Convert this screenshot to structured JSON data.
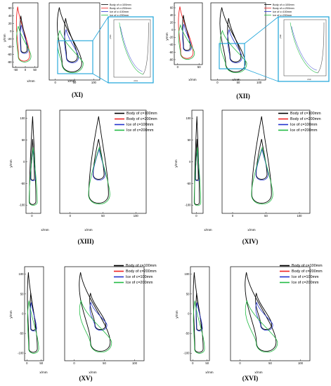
{
  "colors": {
    "body100": "#000000",
    "body200": "#ee2222",
    "ice100": "#2233cc",
    "ice200": "#22bb44",
    "highlight": "#1aa3d9"
  },
  "chart_data": [
    {
      "panel": "XI",
      "type": "line",
      "caption": "(XI)",
      "xlabel": "x/mm",
      "ylabel": "y/mm",
      "legend": [
        "Body of c=100mm",
        "Body of c=200mm",
        "Ice of c=100mm",
        "Ice of c=200mm"
      ],
      "y_ticks": [
        "-80",
        "-60",
        "-40",
        "-20",
        "0",
        "20",
        "40",
        "60"
      ],
      "x_ticks": [
        [
          "-50",
          "0",
          "50"
        ],
        [
          "0",
          "50",
          "100"
        ]
      ],
      "inset": {
        "ylabel": "y/mm",
        "xlabel": "x/mm"
      }
    },
    {
      "panel": "XII",
      "type": "line",
      "caption": "(XII)",
      "xlabel": "x/mm",
      "ylabel": "y/mm",
      "legend": [
        "Body of c=100mm",
        "Body of c=200mm",
        "Ice of c=100mm",
        "Ice of c=200mm"
      ],
      "y_ticks": [
        "-80",
        "-60",
        "-40",
        "-20",
        "0",
        "20",
        "40",
        "60"
      ],
      "x_ticks": [
        [
          "0",
          "50"
        ],
        [
          "0",
          "50",
          "100"
        ]
      ],
      "inset": {
        "ylabel": "y/mm",
        "xlabel": "x/mm"
      }
    },
    {
      "panel": "XIII",
      "type": "line",
      "caption": "(XIII)",
      "xlabel": "x/mm",
      "ylabel": "y/mm",
      "legend": [
        "Body of c=100mm",
        "Body of c=200mm",
        "Ice of c=100mm",
        "Ice of c=200mm"
      ],
      "y_ticks": [
        "-100",
        "-50",
        "0",
        "50",
        "100"
      ],
      "x_ticks": [
        [
          "0"
        ],
        [
          "0",
          "50",
          "100"
        ]
      ]
    },
    {
      "panel": "XIV",
      "type": "line",
      "caption": "(XIV)",
      "xlabel": "x/mm",
      "ylabel": "y/mm",
      "legend": [
        "Body of c=100mm",
        "Body of c=200mm",
        "Ice of c=100mm",
        "Ice of c=200mm"
      ],
      "y_ticks": [
        "-100",
        "-50",
        "0",
        "50",
        "100"
      ],
      "x_ticks": [
        [
          "0"
        ],
        [
          "0",
          "50",
          "100"
        ]
      ]
    },
    {
      "panel": "XV",
      "type": "line",
      "caption": "(XV)",
      "xlabel": "x/mm",
      "ylabel": "y/mm",
      "legend": [
        "Body of c=100mm",
        "Body of c=200mm",
        "Ice of c=100mm",
        "Ice of c=200mm"
      ],
      "y_ticks": [
        "-100",
        "-50",
        "0",
        "50",
        "100"
      ],
      "x_ticks": [
        [
          "0",
          "50"
        ],
        [
          "0",
          "50",
          "100"
        ]
      ]
    },
    {
      "panel": "XVI",
      "type": "line",
      "caption": "(XVI)",
      "xlabel": "x/mm",
      "ylabel": "y/mm",
      "legend": [
        "Body of c=100mm",
        "Body of c=200mm",
        "Ice of c=100mm",
        "Ice of c=200mm"
      ],
      "y_ticks": [
        "-100",
        "-50",
        "0",
        "50",
        "100"
      ],
      "x_ticks": [
        [
          "0",
          "50"
        ],
        [
          "0",
          "50",
          "100"
        ]
      ]
    }
  ]
}
